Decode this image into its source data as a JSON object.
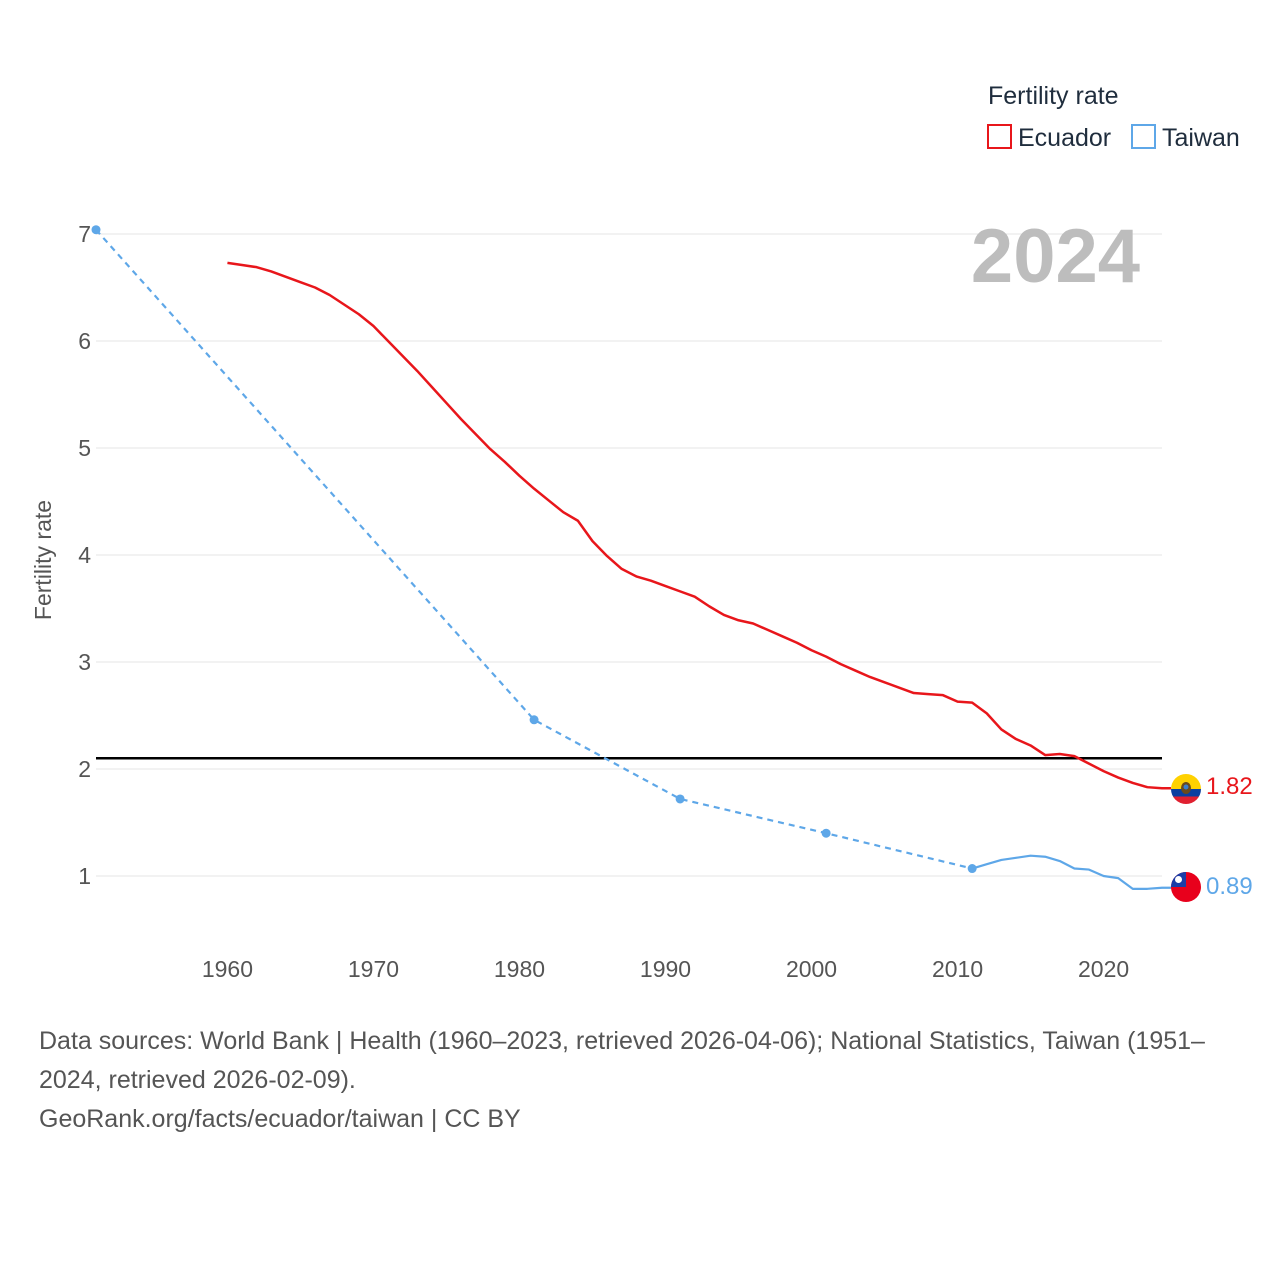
{
  "chart_data": {
    "type": "line",
    "ylabel": "Fertility rate",
    "xlabel": "",
    "xlim": [
      1951,
      2024
    ],
    "ylim": [
      0.4,
      7.0
    ],
    "x_ticks": [
      1960,
      1970,
      1980,
      1990,
      2000,
      2010,
      2020
    ],
    "y_ticks": [
      1,
      2,
      3,
      4,
      5,
      6,
      7
    ],
    "current_year": "2024",
    "legend": {
      "title": "Fertility rate",
      "items": [
        {
          "name": "Ecuador",
          "color": "#e8161b"
        },
        {
          "name": "Taiwan",
          "color": "#5ea7e8"
        }
      ]
    },
    "reference_line": {
      "y": 2.1,
      "color": "#000000"
    },
    "series": [
      {
        "name": "Ecuador",
        "color": "#e8161b",
        "style": "solid",
        "end_label": "1.82",
        "end_value": 1.82,
        "flag": "ecuador-flag",
        "x": [
          1960,
          1961,
          1962,
          1963,
          1964,
          1965,
          1966,
          1967,
          1968,
          1969,
          1970,
          1971,
          1972,
          1973,
          1974,
          1975,
          1976,
          1977,
          1978,
          1979,
          1980,
          1981,
          1982,
          1983,
          1984,
          1985,
          1986,
          1987,
          1988,
          1989,
          1990,
          1991,
          1992,
          1993,
          1994,
          1995,
          1996,
          1997,
          1998,
          1999,
          2000,
          2001,
          2002,
          2003,
          2004,
          2005,
          2006,
          2007,
          2008,
          2009,
          2010,
          2011,
          2012,
          2013,
          2014,
          2015,
          2016,
          2017,
          2018,
          2019,
          2020,
          2021,
          2022,
          2023,
          2024
        ],
        "y": [
          6.73,
          6.71,
          6.69,
          6.65,
          6.6,
          6.55,
          6.5,
          6.43,
          6.34,
          6.25,
          6.14,
          6.0,
          5.86,
          5.72,
          5.57,
          5.42,
          5.27,
          5.13,
          4.99,
          4.87,
          4.74,
          4.62,
          4.51,
          4.4,
          4.32,
          4.13,
          3.99,
          3.87,
          3.8,
          3.76,
          3.71,
          3.66,
          3.61,
          3.52,
          3.44,
          3.39,
          3.36,
          3.3,
          3.24,
          3.18,
          3.11,
          3.05,
          2.98,
          2.92,
          2.86,
          2.81,
          2.76,
          2.71,
          2.7,
          2.69,
          2.63,
          2.62,
          2.52,
          2.37,
          2.28,
          2.22,
          2.13,
          2.14,
          2.12,
          2.05,
          1.98,
          1.92,
          1.87,
          1.83,
          1.82
        ]
      },
      {
        "name": "Taiwan",
        "color": "#5ea7e8",
        "end_label": "0.89",
        "end_value": 0.89,
        "flag": "taiwan-flag",
        "dashed_points": {
          "x": [
            1951,
            1981,
            1991,
            2001,
            2011
          ],
          "y": [
            7.04,
            2.46,
            1.72,
            1.4,
            1.07
          ]
        },
        "solid": {
          "x": [
            2011,
            2012,
            2013,
            2014,
            2015,
            2016,
            2017,
            2018,
            2019,
            2020,
            2021,
            2022,
            2023,
            2024
          ],
          "y": [
            1.07,
            1.11,
            1.15,
            1.17,
            1.19,
            1.18,
            1.14,
            1.07,
            1.06,
            1.0,
            0.98,
            0.88,
            0.88,
            0.89
          ]
        }
      }
    ]
  },
  "footer": {
    "line1": "Data sources: World Bank | Health (1960–2023, retrieved 2026-04-06); National Statistics, Taiwan (1951–2024, retrieved 2026-02-09).",
    "line2": "GeoRank.org/facts/ecuador/taiwan | CC BY"
  }
}
